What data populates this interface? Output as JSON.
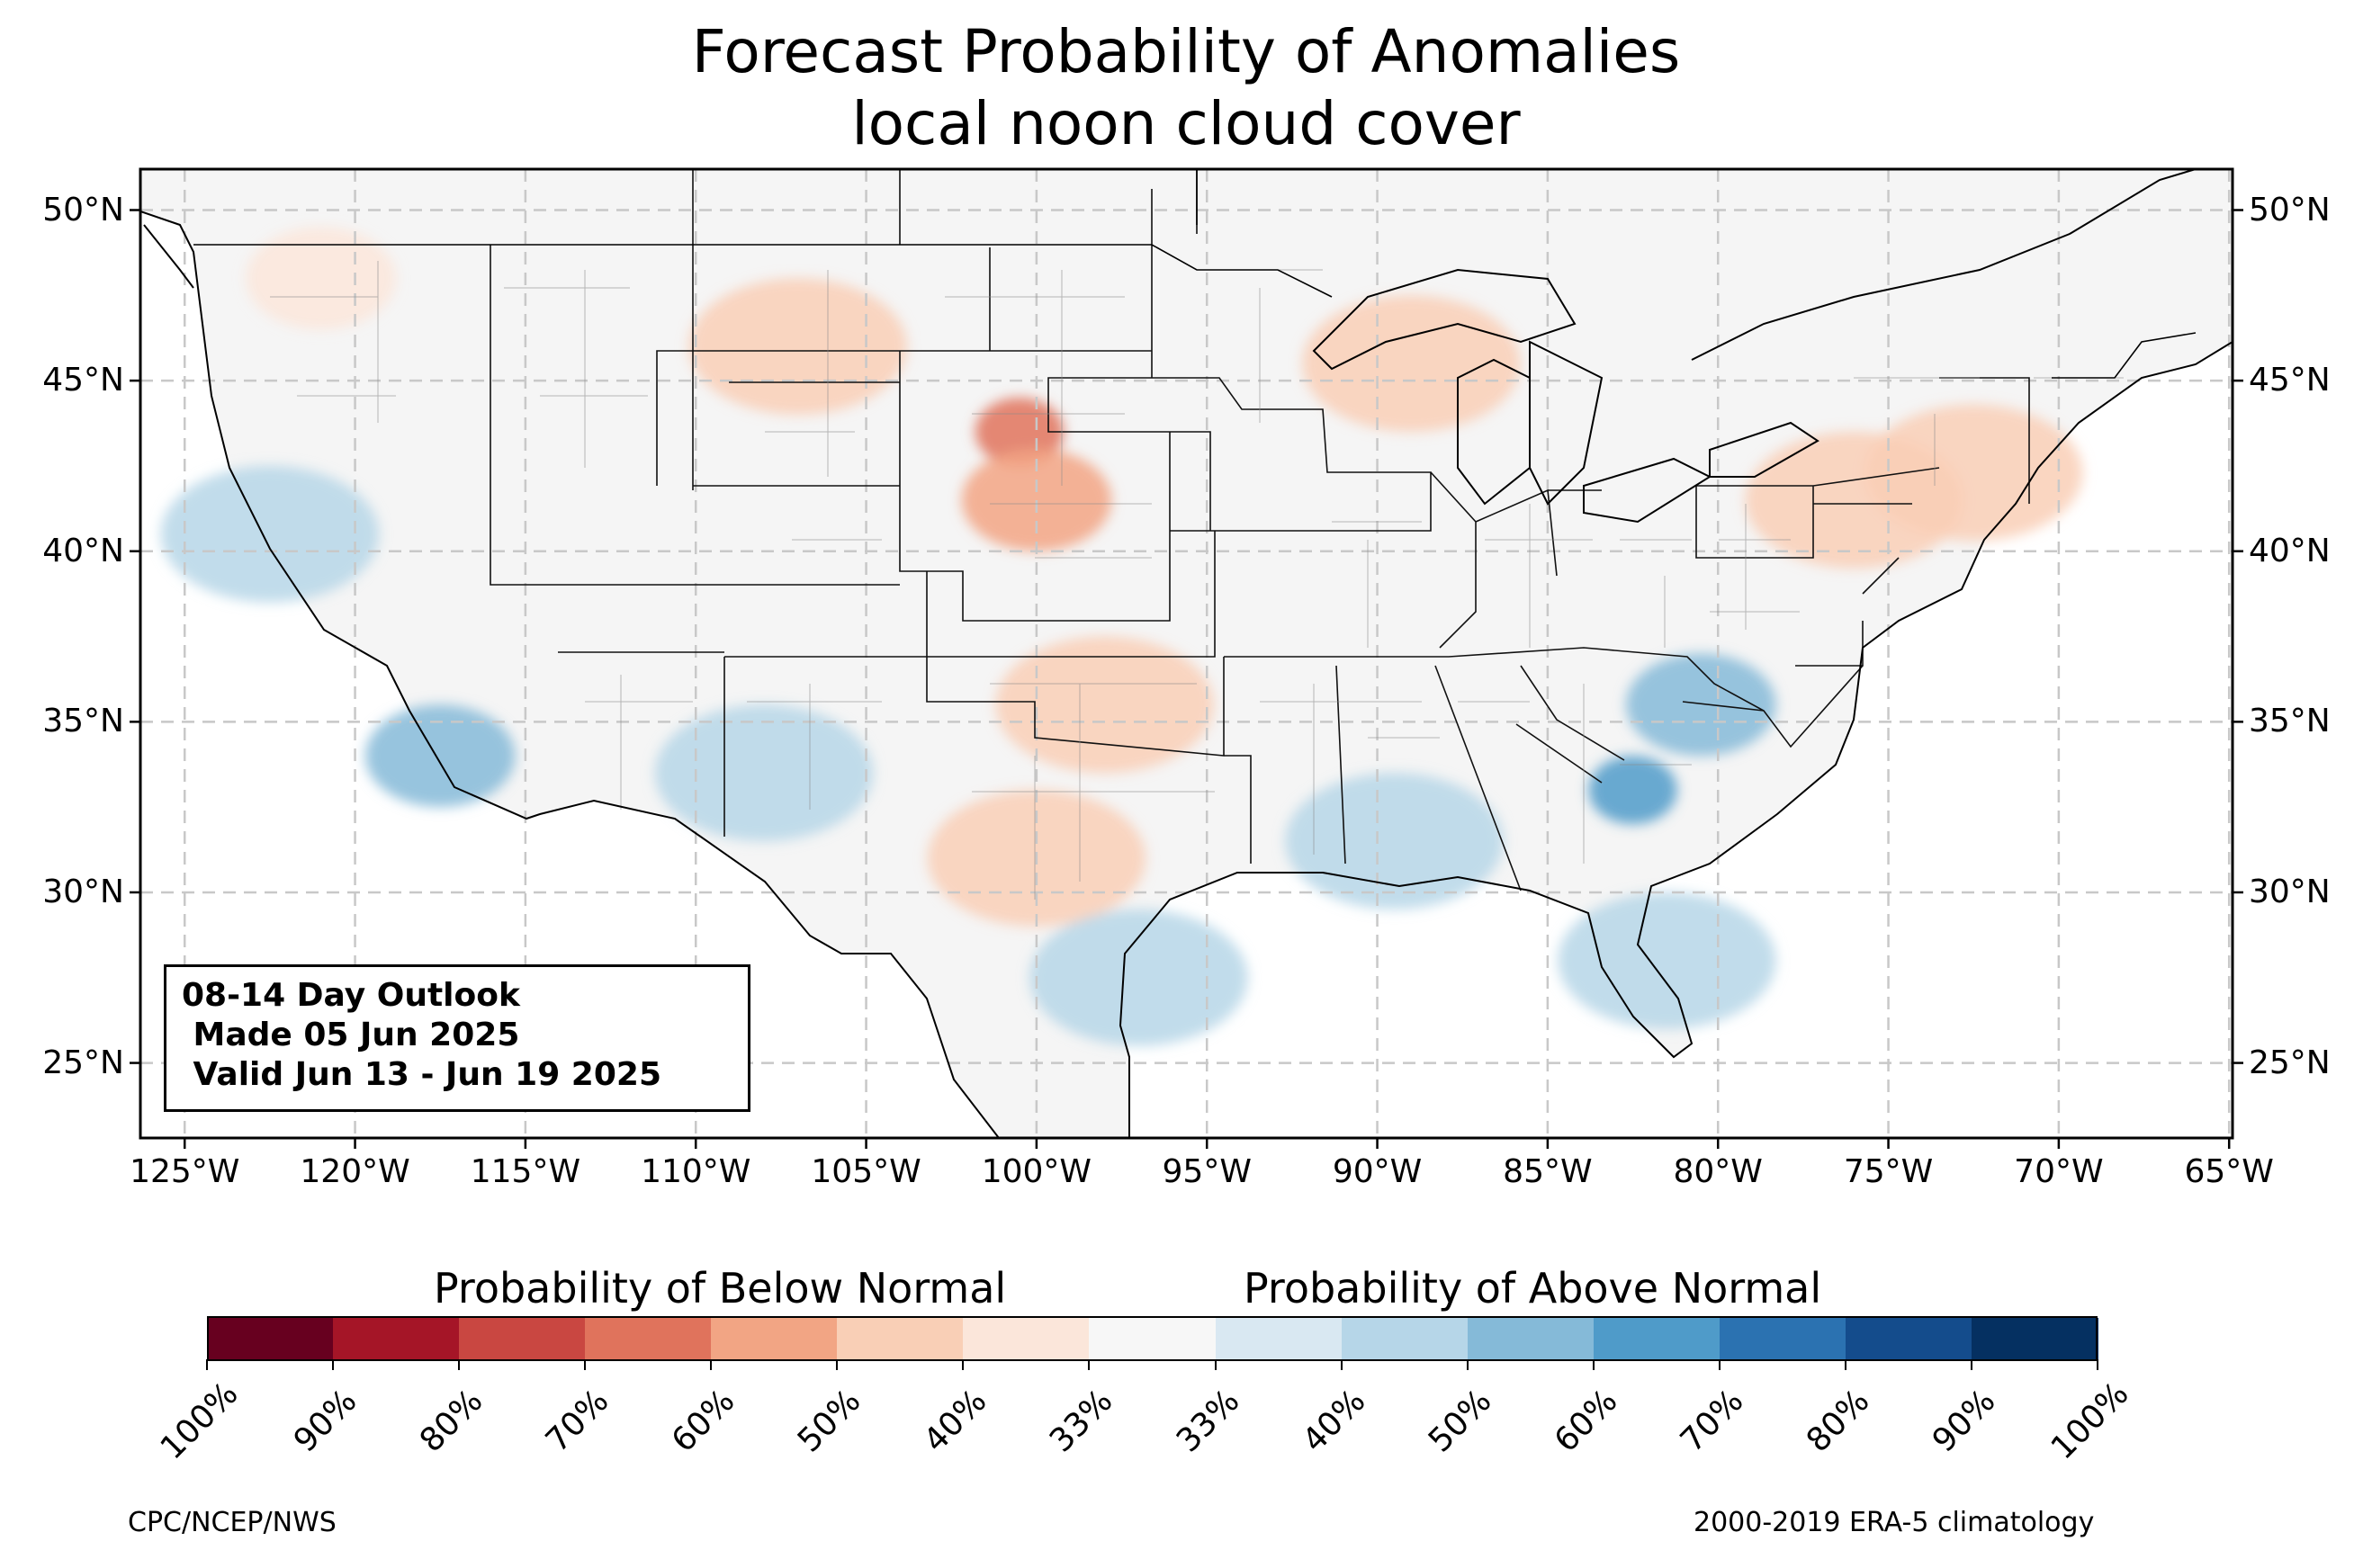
{
  "title": {
    "line1": "Forecast Probability of Anomalies",
    "line2": "local noon cloud cover"
  },
  "outlook": {
    "line1": "08-14 Day Outlook",
    "line2": " Made 05 Jun 2025",
    "line3": " Valid Jun 13 - Jun 19 2025"
  },
  "axes": {
    "lon_ticks": [
      "125°W",
      "120°W",
      "115°W",
      "110°W",
      "105°W",
      "100°W",
      "95°W",
      "90°W",
      "85°W",
      "80°W",
      "75°W",
      "70°W",
      "65°W"
    ],
    "lat_ticks": [
      "50°N",
      "45°N",
      "40°N",
      "35°N",
      "30°N",
      "25°N"
    ],
    "lon_range": [
      -126.3,
      -64.9
    ],
    "lat_range": [
      22.8,
      51.2
    ],
    "gridlines": "dashed"
  },
  "legend": {
    "below_label": "Probability of Below Normal",
    "above_label": "Probability of Above Normal",
    "tick_labels": [
      "100%",
      "90%",
      "80%",
      "70%",
      "60%",
      "50%",
      "40%",
      "33%",
      "33%",
      "40%",
      "50%",
      "60%",
      "70%",
      "80%",
      "90%",
      "100%"
    ],
    "colors": [
      "#67001f",
      "#a51527",
      "#c94741",
      "#e0735c",
      "#f2a584",
      "#f9cfb6",
      "#fbe6da",
      "#f7f7f7",
      "#d9e8f2",
      "#b6d6e8",
      "#85bad8",
      "#4f9bc9",
      "#2b72b1",
      "#144c8c",
      "#053061"
    ]
  },
  "credits": {
    "left": "CPC/NCEP/NWS",
    "right": "2000-2019 ERA-5 climatology"
  },
  "map_data": {
    "region": "Contiguous United States",
    "variable": "local noon cloud cover",
    "below_normal_areas": [
      {
        "name": "northern rockies and northern plains",
        "lon": -107,
        "lat": 46,
        "prob": "40-50%"
      },
      {
        "name": "south dakota - nebraska",
        "lon": -100.5,
        "lat": 43.5,
        "prob": "60-70%"
      },
      {
        "name": "central nebraska",
        "lon": -100,
        "lat": 41.5,
        "prob": "50-60%"
      },
      {
        "name": "texas panhandle - oklahoma",
        "lon": -98,
        "lat": 35.5,
        "prob": "40-50%"
      },
      {
        "name": "west texas",
        "lon": -100,
        "lat": 31,
        "prob": "40-50%"
      },
      {
        "name": "wisconsin / upper michigan",
        "lon": -89,
        "lat": 45.5,
        "prob": "40-50%"
      },
      {
        "name": "pennsylvania / new york",
        "lon": -76,
        "lat": 41.5,
        "prob": "40-50%"
      },
      {
        "name": "southern new england",
        "lon": -72.5,
        "lat": 42.3,
        "prob": "40-50%"
      },
      {
        "name": "idaho / washington",
        "lon": -121,
        "lat": 48,
        "prob": "33-40%"
      }
    ],
    "above_normal_areas": [
      {
        "name": "georgia / south carolina",
        "lon": -82.5,
        "lat": 33,
        "prob": "60-70%"
      },
      {
        "name": "north carolina / virginia",
        "lon": -80.5,
        "lat": 35.5,
        "prob": "50-60%"
      },
      {
        "name": "florida",
        "lon": -81.5,
        "lat": 28,
        "prob": "40-50%"
      },
      {
        "name": "gulf coast",
        "lon": -89.5,
        "lat": 31.5,
        "prob": "40-50%"
      },
      {
        "name": "southern california",
        "lon": -117.5,
        "lat": 34,
        "prob": "50-60%"
      },
      {
        "name": "northern california",
        "lon": -122.5,
        "lat": 40.5,
        "prob": "40-50%"
      },
      {
        "name": "arizona / new mexico",
        "lon": -108,
        "lat": 33.5,
        "prob": "40-50%"
      },
      {
        "name": "south texas coast",
        "lon": -97,
        "lat": 27.5,
        "prob": "40-50%"
      }
    ]
  }
}
